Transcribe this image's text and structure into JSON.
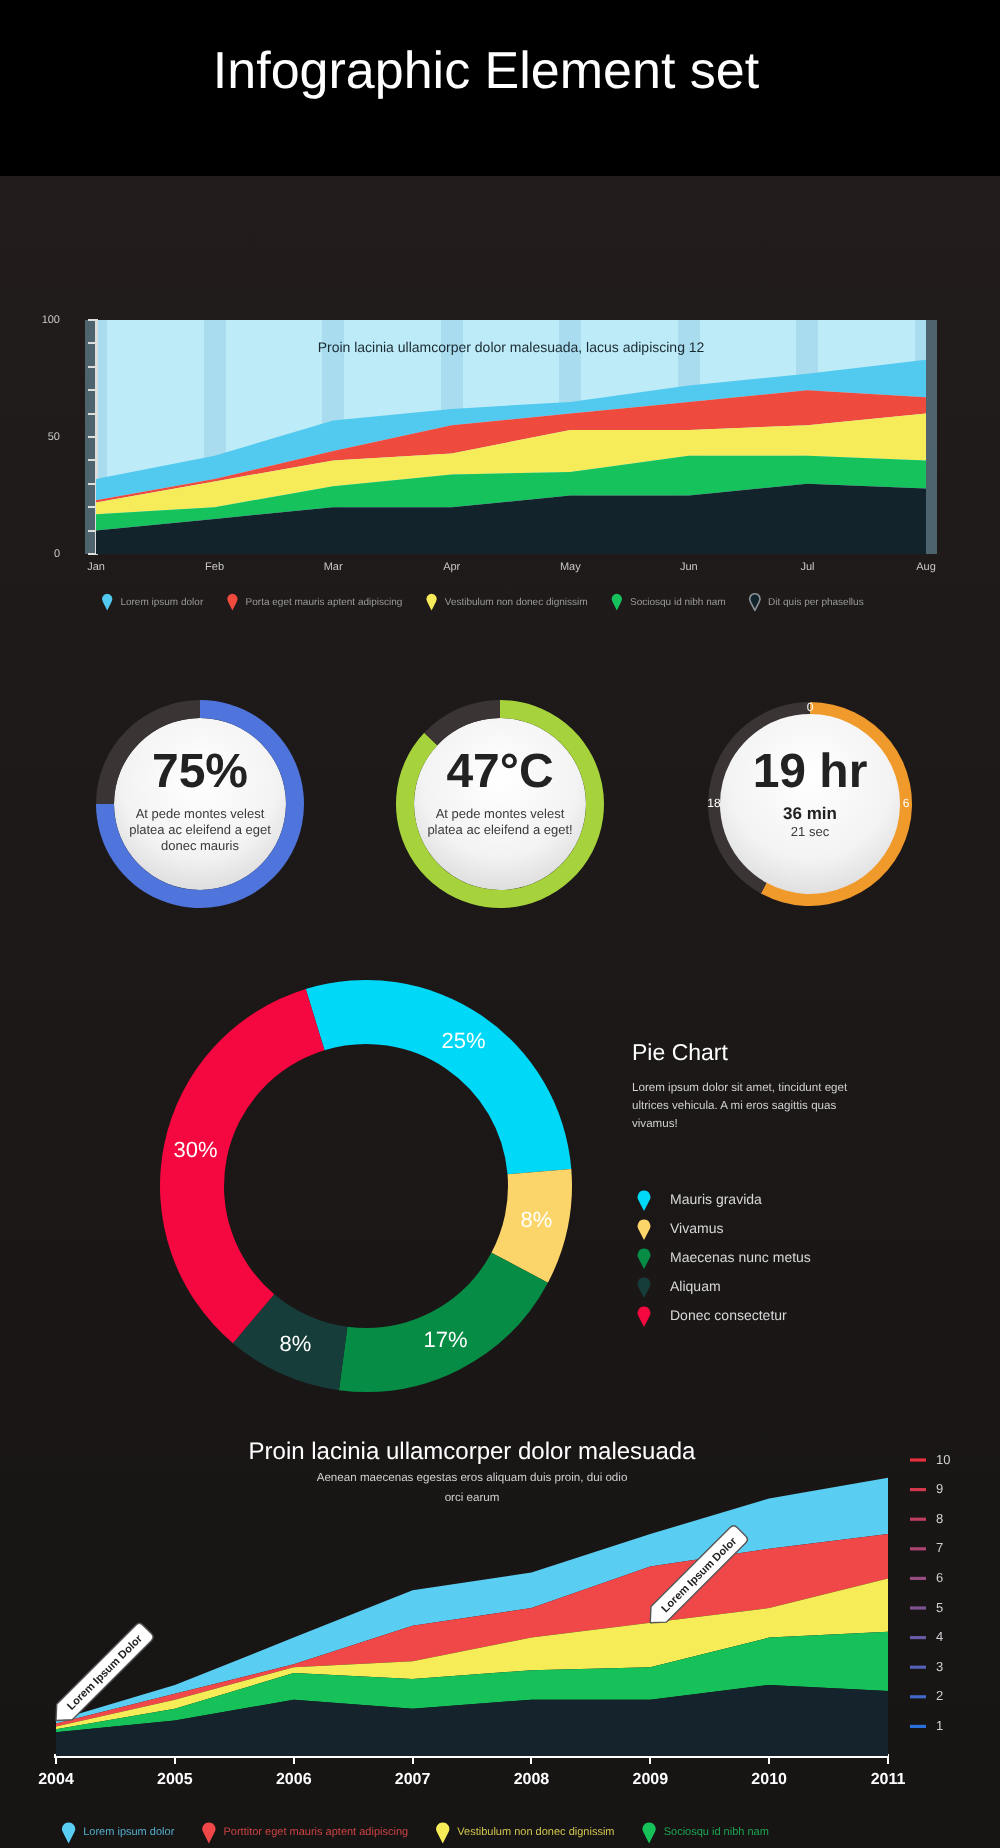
{
  "chart_data": [
    {
      "type": "other",
      "title": "Infographic Element set"
    },
    {
      "type": "area",
      "title": "Proin lacinia ullamcorper dolor malesuada, lacus adipiscing 12",
      "categories": [
        "Jan",
        "Feb",
        "Mar",
        "Apr",
        "May",
        "Jun",
        "Jul",
        "Aug"
      ],
      "stacked": true,
      "series": [
        {
          "name": "Dit quis per phasellus",
          "color": "#13232c",
          "values": [
            10,
            15,
            20,
            20,
            25,
            25,
            30,
            28
          ]
        },
        {
          "name": "Sociosqu id nibh nam",
          "color": "#16c25c",
          "values": [
            7,
            5,
            9,
            14,
            10,
            17,
            12,
            12
          ]
        },
        {
          "name": "Vestibulum non donec dignissim",
          "color": "#f6ec5a",
          "values": [
            5,
            11,
            11,
            9,
            18,
            11,
            13,
            20
          ]
        },
        {
          "name": "Porta eget mauris aptent adipiscing",
          "color": "#ef4a3e",
          "values": [
            1,
            1,
            4,
            12,
            7,
            12,
            15,
            7
          ]
        },
        {
          "name": "Lorem ipsum dolor",
          "color": "#52c9ef",
          "values": [
            9,
            10,
            13,
            7,
            5,
            7,
            7,
            16
          ]
        }
      ],
      "ylim": [
        0,
        100
      ],
      "yticks": [
        0,
        {
          "value": 10,
          "label": null
        },
        {
          "value": 20,
          "label": null
        },
        {
          "value": 30,
          "label": null
        },
        {
          "value": 40,
          "label": null
        },
        50,
        {
          "value": 60,
          "label": null
        },
        {
          "value": 70,
          "label": null
        },
        {
          "value": 80,
          "label": null
        },
        {
          "value": 90,
          "label": null
        },
        100
      ],
      "grid": "x",
      "legend": "bottom"
    },
    {
      "type": "donut",
      "categories": [
        null,
        null
      ],
      "values": [
        75,
        25
      ],
      "colors": [
        "#4f74dc",
        "#3a3434"
      ],
      "annotations": [
        "75%",
        "At pede montes velest platea ac eleifend a eget donec mauris"
      ]
    },
    {
      "type": "donut",
      "categories": [
        null,
        null
      ],
      "values": [
        87,
        13
      ],
      "colors": [
        "#a6d23c",
        "#3a3434"
      ],
      "annotations": [
        "47°C",
        "At pede montes velest platea ac eleifend a eget!"
      ]
    },
    {
      "type": "donut",
      "categories": [
        null,
        null
      ],
      "values": [
        58,
        42
      ],
      "colors": [
        "#f09a2c",
        "#3a3434"
      ],
      "annotations": [
        "19 hr",
        "36 min",
        "21 sec",
        "0",
        "6",
        "18"
      ]
    },
    {
      "type": "donut",
      "title": "Pie Chart",
      "subtitle": "Lorem ipsum dolor sit amet, tincidunt eget ultrices vehicula. A mi eros sagittis quas vivamus!",
      "categories": [
        "Mauris gravida",
        "Vivamus",
        "Maecenas nunc metus",
        "Aliquam",
        "Donec consectetur"
      ],
      "values": [
        25,
        8,
        17,
        8,
        30
      ],
      "colors": [
        "#00d8f8",
        "#fcd56a",
        "#078c45",
        "#173d3a",
        "#f5073f"
      ],
      "value_labels": [
        "25%",
        "8%",
        "17%",
        "8%",
        "30%"
      ],
      "legend": "right"
    },
    {
      "type": "area",
      "title": "Proin lacinia ullamcorper dolor malesuada",
      "subtitle": "Aenean maecenas egestas eros aliquam duis proin, dui odio orci earum",
      "categories": [
        "2004",
        "2005",
        "2006",
        "2007",
        "2008",
        "2009",
        "2010",
        "2011"
      ],
      "stacked": true,
      "series": [
        {
          "color": "#14232c",
          "values": [
            0.8,
            1.2,
            1.9,
            1.6,
            1.9,
            1.9,
            2.4,
            2.2
          ]
        },
        {
          "name": "Sociosqu id nibh nam",
          "color": "#17c15a",
          "values": [
            0.1,
            0.4,
            0.9,
            1.0,
            1.0,
            1.1,
            1.6,
            2.0
          ]
        },
        {
          "name": "Vestibulum non donec dignissim",
          "color": "#f5ec57",
          "values": [
            0.1,
            0.3,
            0.2,
            0.6,
            1.1,
            1.5,
            1.0,
            1.8
          ]
        },
        {
          "name": "Porttitor eget mauris aptent adipiscing",
          "color": "#f04848",
          "values": [
            0.1,
            0.2,
            0.1,
            1.2,
            1.0,
            1.9,
            2.0,
            1.5
          ]
        },
        {
          "name": "Lorem ipsum dolor",
          "color": "#5acdf2",
          "values": [
            0.1,
            0.3,
            0.9,
            1.2,
            1.2,
            1.1,
            1.7,
            1.9
          ]
        }
      ],
      "ylim": [
        0,
        10
      ],
      "yticks": [
        1,
        2,
        3,
        4,
        5,
        6,
        7,
        8,
        9,
        10
      ],
      "grid": false,
      "legend": "bottom",
      "annotations": [
        {
          "text": "Lorem Ipsum Dolor",
          "x": "2004",
          "y": 1.2
        },
        {
          "text": "Lorem Ipsum Dolor",
          "x": "2009",
          "y": 4.5
        }
      ]
    }
  ]
}
